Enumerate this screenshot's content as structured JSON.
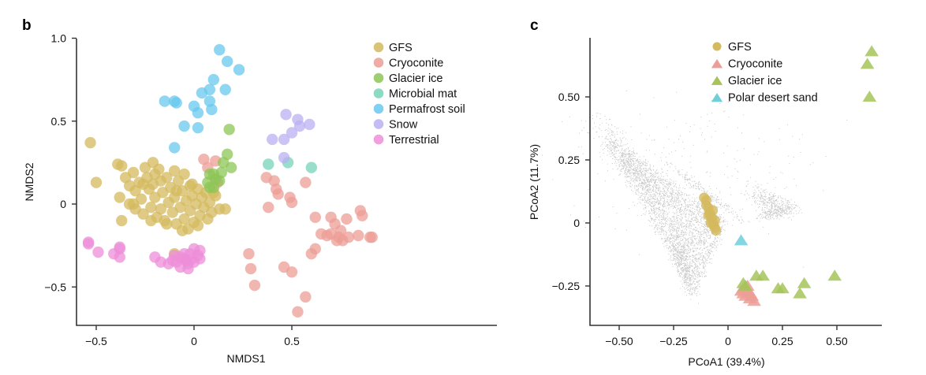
{
  "chart_data": [
    {
      "panel": "b",
      "type": "scatter",
      "title": "",
      "xlabel": "NMDS1",
      "ylabel": "NMDS2",
      "xlim": [
        -0.6,
        1.4
      ],
      "ylim": [
        -0.72,
        1.0
      ],
      "xticks": [
        -0.5,
        0,
        0.5
      ],
      "xtick_labels": [
        "−0.5",
        "0",
        "0.5"
      ],
      "yticks": [
        -0.5,
        0,
        0.5,
        1.0
      ],
      "ytick_labels": [
        "−0.5",
        "0",
        "0.5",
        "1.0"
      ],
      "grid": false,
      "legend_position": "top-right",
      "marker": "circle",
      "series": [
        {
          "name": "GFS",
          "color": "#d4b95e",
          "points": [
            [
              -0.53,
              0.37
            ],
            [
              -0.5,
              0.13
            ],
            [
              -0.39,
              0.24
            ],
            [
              -0.37,
              0.23
            ],
            [
              -0.38,
              0.04
            ],
            [
              -0.37,
              -0.1
            ],
            [
              -0.35,
              0.16
            ],
            [
              -0.33,
              0.11
            ],
            [
              -0.33,
              0.0
            ],
            [
              -0.31,
              0.19
            ],
            [
              -0.3,
              0.08
            ],
            [
              -0.3,
              -0.03
            ],
            [
              -0.28,
              0.13
            ],
            [
              -0.27,
              0.03
            ],
            [
              -0.26,
              -0.06
            ],
            [
              -0.25,
              0.22
            ],
            [
              -0.24,
              0.16
            ],
            [
              -0.23,
              0.09
            ],
            [
              -0.22,
              -0.02
            ],
            [
              -0.21,
              0.25
            ],
            [
              -0.21,
              0.12
            ],
            [
              -0.2,
              0.04
            ],
            [
              -0.19,
              -0.08
            ],
            [
              -0.18,
              0.21
            ],
            [
              -0.17,
              0.14
            ],
            [
              -0.17,
              -0.03
            ],
            [
              -0.16,
              0.07
            ],
            [
              -0.15,
              -0.1
            ],
            [
              -0.14,
              0.16
            ],
            [
              -0.13,
              0.01
            ],
            [
              -0.12,
              0.1
            ],
            [
              -0.11,
              -0.05
            ],
            [
              -0.1,
              0.2
            ],
            [
              -0.1,
              0.04
            ],
            [
              -0.09,
              -0.12
            ],
            [
              -0.08,
              0.14
            ],
            [
              -0.07,
              -0.02
            ],
            [
              -0.06,
              0.08
            ],
            [
              -0.05,
              -0.09
            ],
            [
              -0.05,
              0.18
            ],
            [
              -0.04,
              0.02
            ],
            [
              -0.03,
              -0.15
            ],
            [
              -0.02,
              0.11
            ],
            [
              -0.02,
              -0.04
            ],
            [
              -0.01,
              0.05
            ],
            [
              0.0,
              -0.11
            ],
            [
              0.01,
              0.0
            ],
            [
              0.02,
              0.09
            ],
            [
              0.03,
              -0.07
            ],
            [
              0.04,
              0.04
            ],
            [
              0.05,
              -0.02
            ],
            [
              0.06,
              0.07
            ],
            [
              0.07,
              -0.09
            ],
            [
              0.08,
              0.01
            ],
            [
              0.09,
              -0.05
            ],
            [
              0.11,
              0.05
            ],
            [
              0.13,
              -0.03
            ],
            [
              -0.22,
              -0.1
            ],
            [
              -0.14,
              -0.12
            ],
            [
              -0.06,
              -0.16
            ],
            [
              -0.09,
              0.08
            ],
            [
              -0.2,
              0.18
            ],
            [
              -0.26,
              0.12
            ],
            [
              -0.31,
              0.0
            ],
            [
              -0.01,
              0.12
            ],
            [
              0.02,
              -0.13
            ],
            [
              0.16,
              -0.03
            ],
            [
              0.1,
              0.07
            ],
            [
              -0.1,
              -0.3
            ]
          ]
        },
        {
          "name": "Cryoconite",
          "color": "#ec9e96",
          "points": [
            [
              0.05,
              0.27
            ],
            [
              0.07,
              0.22
            ],
            [
              0.12,
              0.13
            ],
            [
              0.11,
              0.26
            ],
            [
              0.37,
              0.16
            ],
            [
              0.41,
              0.14
            ],
            [
              0.43,
              0.06
            ],
            [
              0.42,
              0.09
            ],
            [
              0.38,
              -0.02
            ],
            [
              0.49,
              0.04
            ],
            [
              0.5,
              0.01
            ],
            [
              0.57,
              0.13
            ],
            [
              0.62,
              -0.08
            ],
            [
              0.7,
              -0.08
            ],
            [
              0.72,
              -0.12
            ],
            [
              0.78,
              -0.09
            ],
            [
              0.85,
              -0.04
            ],
            [
              0.86,
              -0.07
            ],
            [
              0.68,
              -0.19
            ],
            [
              0.7,
              -0.18
            ],
            [
              0.74,
              -0.2
            ],
            [
              0.75,
              -0.16
            ],
            [
              0.76,
              -0.22
            ],
            [
              0.79,
              -0.2
            ],
            [
              0.84,
              -0.19
            ],
            [
              0.9,
              -0.2
            ],
            [
              0.91,
              -0.2
            ],
            [
              0.62,
              -0.27
            ],
            [
              0.6,
              -0.3
            ],
            [
              0.28,
              -0.3
            ],
            [
              0.29,
              -0.39
            ],
            [
              0.31,
              -0.49
            ],
            [
              0.46,
              -0.38
            ],
            [
              0.5,
              -0.41
            ],
            [
              0.57,
              -0.56
            ],
            [
              0.53,
              -0.65
            ],
            [
              0.65,
              -0.18
            ],
            [
              0.73,
              -0.22
            ]
          ]
        },
        {
          "name": "Glacier ice",
          "color": "#8cc656",
          "points": [
            [
              0.18,
              0.45
            ],
            [
              0.17,
              0.3
            ],
            [
              0.15,
              0.25
            ],
            [
              0.19,
              0.22
            ],
            [
              0.14,
              0.19
            ],
            [
              0.1,
              0.18
            ],
            [
              0.11,
              0.15
            ],
            [
              0.13,
              0.14
            ],
            [
              0.08,
              0.18
            ],
            [
              0.07,
              0.13
            ],
            [
              0.1,
              0.1
            ],
            [
              0.08,
              0.1
            ]
          ]
        },
        {
          "name": "Microbial mat",
          "color": "#77d3b8",
          "points": [
            [
              0.38,
              0.24
            ],
            [
              0.48,
              0.25
            ],
            [
              0.6,
              0.22
            ]
          ]
        },
        {
          "name": "Permafrost soil",
          "color": "#68c8ee",
          "points": [
            [
              0.13,
              0.93
            ],
            [
              0.17,
              0.86
            ],
            [
              0.23,
              0.81
            ],
            [
              0.1,
              0.75
            ],
            [
              0.04,
              0.67
            ],
            [
              0.08,
              0.69
            ],
            [
              0.16,
              0.69
            ],
            [
              0.08,
              0.62
            ],
            [
              -0.15,
              0.62
            ],
            [
              -0.1,
              0.62
            ],
            [
              -0.09,
              0.61
            ],
            [
              0.0,
              0.59
            ],
            [
              0.02,
              0.55
            ],
            [
              0.09,
              0.57
            ],
            [
              -0.05,
              0.47
            ],
            [
              0.02,
              0.46
            ],
            [
              -0.1,
              0.34
            ]
          ]
        },
        {
          "name": "Snow",
          "color": "#bbb0f2",
          "points": [
            [
              0.47,
              0.54
            ],
            [
              0.53,
              0.51
            ],
            [
              0.54,
              0.47
            ],
            [
              0.59,
              0.48
            ],
            [
              0.5,
              0.43
            ],
            [
              0.46,
              0.39
            ],
            [
              0.4,
              0.39
            ],
            [
              0.46,
              0.28
            ]
          ]
        },
        {
          "name": "Terrestrial",
          "color": "#ee8ed8",
          "points": [
            [
              -0.54,
              -0.23
            ],
            [
              -0.54,
              -0.24
            ],
            [
              -0.49,
              -0.29
            ],
            [
              -0.41,
              -0.3
            ],
            [
              -0.38,
              -0.27
            ],
            [
              -0.38,
              -0.26
            ],
            [
              -0.38,
              -0.32
            ],
            [
              -0.2,
              -0.32
            ],
            [
              -0.17,
              -0.35
            ],
            [
              -0.13,
              -0.36
            ],
            [
              -0.09,
              -0.35
            ],
            [
              -0.07,
              -0.32
            ],
            [
              -0.05,
              -0.3
            ],
            [
              -0.04,
              -0.34
            ],
            [
              -0.03,
              -0.36
            ],
            [
              -0.02,
              -0.3
            ],
            [
              0.0,
              -0.27
            ],
            [
              -0.07,
              -0.38
            ],
            [
              -0.03,
              -0.39
            ],
            [
              -0.01,
              -0.33
            ],
            [
              0.02,
              -0.31
            ],
            [
              0.0,
              -0.35
            ],
            [
              -0.05,
              -0.33
            ],
            [
              -0.11,
              -0.34
            ],
            [
              0.03,
              -0.28
            ],
            [
              0.03,
              -0.33
            ],
            [
              -0.1,
              -0.31
            ]
          ]
        }
      ]
    },
    {
      "panel": "c",
      "type": "scatter",
      "title": "",
      "xlabel": "PCoA1 (39.4%)",
      "ylabel": "PCoA2 (11.7%)",
      "xlim": [
        -0.63,
        0.7
      ],
      "ylim": [
        -0.41,
        0.74
      ],
      "xticks": [
        -0.5,
        -0.25,
        0,
        0.25,
        0.5
      ],
      "xtick_labels": [
        "−0.50",
        "−0.25",
        "0",
        "0.25",
        "0.50"
      ],
      "yticks": [
        -0.25,
        0,
        0.25,
        0.5
      ],
      "ytick_labels": [
        "−0.25",
        "0",
        "0.25",
        "0.50"
      ],
      "grid": false,
      "legend_position": "top-right",
      "background_cloud": {
        "description": "dense grey reference points",
        "color": "#c8c8c8"
      },
      "series": [
        {
          "name": "GFS",
          "marker": "circle",
          "color": "#d4b95e",
          "points": [
            [
              -0.11,
              0.1
            ],
            [
              -0.1,
              0.09
            ],
            [
              -0.09,
              0.06
            ],
            [
              -0.085,
              0.04
            ],
            [
              -0.08,
              0.03
            ],
            [
              -0.075,
              0.02
            ],
            [
              -0.07,
              0.0
            ],
            [
              -0.065,
              -0.01
            ],
            [
              -0.06,
              -0.02
            ],
            [
              -0.055,
              -0.03
            ],
            [
              -0.1,
              0.07
            ],
            [
              -0.09,
              0.03
            ],
            [
              -0.08,
              0.0
            ],
            [
              -0.07,
              0.05
            ],
            [
              -0.06,
              0.01
            ]
          ]
        },
        {
          "name": "Cryoconite",
          "marker": "triangle",
          "color": "#ec9e96",
          "points": [
            [
              0.06,
              -0.27
            ],
            [
              0.07,
              -0.28
            ],
            [
              0.08,
              -0.29
            ],
            [
              0.09,
              -0.27
            ],
            [
              0.1,
              -0.28
            ],
            [
              0.1,
              -0.3
            ],
            [
              0.11,
              -0.29
            ],
            [
              0.12,
              -0.31
            ],
            [
              0.07,
              -0.26
            ],
            [
              0.09,
              -0.25
            ]
          ]
        },
        {
          "name": "Glacier ice",
          "marker": "triangle",
          "color": "#a6c45a",
          "points": [
            [
              0.66,
              0.68
            ],
            [
              0.64,
              0.63
            ],
            [
              0.65,
              0.5
            ],
            [
              0.07,
              -0.24
            ],
            [
              0.08,
              -0.25
            ],
            [
              0.13,
              -0.21
            ],
            [
              0.16,
              -0.21
            ],
            [
              0.23,
              -0.26
            ],
            [
              0.25,
              -0.26
            ],
            [
              0.35,
              -0.24
            ],
            [
              0.33,
              -0.28
            ],
            [
              0.49,
              -0.21
            ]
          ]
        },
        {
          "name": "Polar desert sand",
          "marker": "triangle",
          "color": "#6fcfda",
          "points": [
            [
              0.06,
              -0.07
            ]
          ]
        }
      ]
    }
  ],
  "panel_b": {
    "label": "b",
    "legend": [
      "GFS",
      "Cryoconite",
      "Glacier ice",
      "Microbial mat",
      "Permafrost soil",
      "Snow",
      "Terrestrial"
    ]
  },
  "panel_c": {
    "label": "c",
    "legend": [
      "GFS",
      "Cryoconite",
      "Glacier ice",
      "Polar desert sand"
    ]
  }
}
